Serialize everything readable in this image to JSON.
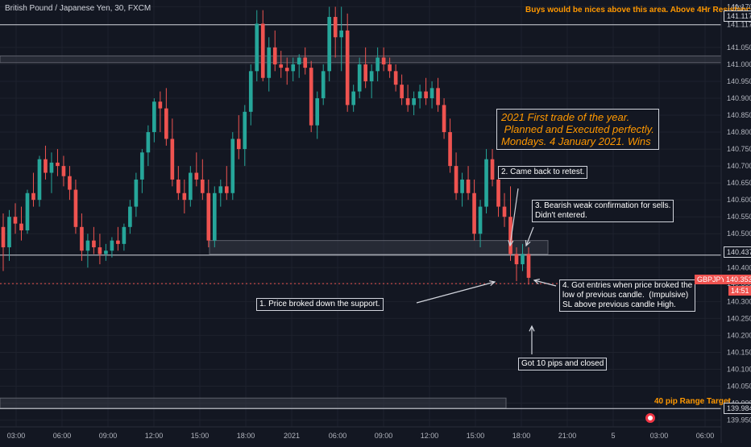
{
  "header": {
    "symbol": "British Pound / Japanese Yen, 30, FXCM",
    "currency": "JPY",
    "top_note": "Buys would be nices above this area. Above 4Hr Resistance."
  },
  "annotations": {
    "big_title": "2021 First trade of the year.\n Planned and Executed perfectly.\nMondays. 4 January 2021. Wins",
    "n1": "1. Price broked down the support.",
    "n2": "2. Came back to retest.",
    "n3": "3. Bearish weak confirmation for sells.\nDidn't entered.",
    "n4": "4. Got entries when price broked the\nlow of previous candle.  (Impulsive)\nSL above previous candle High.",
    "n5": "Got 10 pips and closed",
    "target": "40 pip Range Target"
  },
  "price_tags": {
    "top_line": "141.117",
    "support_line": "140.437",
    "current_label": "GBPJPY",
    "current": "140.353",
    "timer": "14:51",
    "target_line": "139.984"
  },
  "colors": {
    "background": "#131722",
    "bull": "#26a69a",
    "bear": "#ef5350",
    "text": "#d1d4dc",
    "grid": "#1e222d",
    "annotation": "#ff9800"
  },
  "chart_data": {
    "type": "candlestick",
    "y_ticks": [
      "141.170",
      "141.117",
      "141.050",
      "141.000",
      "140.950",
      "140.900",
      "140.850",
      "140.800",
      "140.750",
      "140.700",
      "140.650",
      "140.600",
      "140.550",
      "140.500",
      "140.437",
      "140.400",
      "140.353",
      "140.300",
      "140.250",
      "140.200",
      "140.150",
      "140.100",
      "140.050",
      "140.000",
      "139.984",
      "139.950"
    ],
    "x_ticks": [
      "03:00",
      "06:00",
      "09:00",
      "12:00",
      "15:00",
      "18:00",
      "2021",
      "06:00",
      "09:00",
      "12:00",
      "15:00",
      "18:00",
      "21:00",
      "5",
      "03:00",
      "06:00"
    ],
    "ylim": [
      139.93,
      141.19
    ],
    "levels": {
      "resistance": 141.117,
      "support": 140.437,
      "target": 139.984,
      "current": 140.353
    },
    "zones": [
      {
        "from": 141.005,
        "to": 141.025
      },
      {
        "from": 140.44,
        "to": 140.48
      },
      {
        "from": 139.985,
        "to": 140.015
      }
    ],
    "ohlc": [
      [
        140.52,
        140.56,
        140.39,
        140.46
      ],
      [
        140.46,
        140.57,
        140.42,
        140.55
      ],
      [
        140.55,
        140.59,
        140.5,
        140.53
      ],
      [
        140.53,
        140.58,
        140.48,
        140.51
      ],
      [
        140.51,
        140.63,
        140.5,
        140.62
      ],
      [
        140.62,
        140.68,
        140.58,
        140.6
      ],
      [
        140.6,
        140.73,
        140.58,
        140.72
      ],
      [
        140.72,
        140.76,
        140.66,
        140.68
      ],
      [
        140.68,
        140.74,
        140.62,
        140.71
      ],
      [
        140.71,
        140.75,
        140.67,
        140.7
      ],
      [
        140.7,
        140.73,
        140.64,
        140.67
      ],
      [
        140.67,
        140.7,
        140.6,
        140.63
      ],
      [
        140.63,
        140.66,
        140.5,
        140.52
      ],
      [
        140.52,
        140.56,
        140.42,
        140.45
      ],
      [
        140.45,
        140.5,
        140.4,
        140.48
      ],
      [
        140.48,
        140.52,
        140.44,
        140.46
      ],
      [
        140.46,
        140.5,
        140.41,
        140.44
      ],
      [
        140.44,
        140.47,
        140.42,
        140.45
      ],
      [
        140.45,
        140.49,
        140.43,
        140.48
      ],
      [
        140.48,
        140.52,
        140.45,
        140.47
      ],
      [
        140.47,
        140.53,
        140.45,
        140.52
      ],
      [
        140.52,
        140.6,
        140.5,
        140.58
      ],
      [
        140.58,
        140.68,
        140.55,
        140.66
      ],
      [
        140.66,
        140.75,
        140.62,
        140.74
      ],
      [
        140.74,
        140.82,
        140.7,
        140.8
      ],
      [
        140.8,
        140.9,
        140.77,
        140.89
      ],
      [
        140.89,
        140.92,
        140.8,
        140.87
      ],
      [
        140.87,
        140.93,
        140.76,
        140.78
      ],
      [
        140.78,
        140.84,
        140.64,
        140.66
      ],
      [
        140.66,
        140.7,
        140.6,
        140.62
      ],
      [
        140.62,
        140.66,
        140.56,
        140.6
      ],
      [
        140.6,
        140.7,
        140.58,
        140.68
      ],
      [
        140.68,
        140.74,
        140.64,
        140.66
      ],
      [
        140.66,
        140.72,
        140.6,
        140.62
      ],
      [
        140.62,
        140.66,
        140.46,
        140.48
      ],
      [
        140.48,
        140.64,
        140.46,
        140.62
      ],
      [
        140.62,
        140.66,
        140.58,
        140.64
      ],
      [
        140.64,
        140.7,
        140.6,
        140.62
      ],
      [
        140.62,
        140.8,
        140.6,
        140.78
      ],
      [
        140.78,
        140.85,
        140.72,
        140.75
      ],
      [
        140.75,
        140.88,
        140.7,
        140.86
      ],
      [
        140.86,
        141.0,
        140.82,
        140.98
      ],
      [
        140.98,
        141.16,
        140.95,
        141.12
      ],
      [
        141.12,
        141.16,
        140.95,
        140.96
      ],
      [
        140.96,
        141.08,
        140.92,
        141.05
      ],
      [
        141.05,
        141.1,
        140.98,
        141.0
      ],
      [
        141.0,
        141.04,
        140.96,
        140.99
      ],
      [
        140.99,
        141.02,
        140.94,
        140.98
      ],
      [
        140.98,
        141.02,
        140.95,
        141.0
      ],
      [
        141.0,
        141.03,
        140.96,
        141.02
      ],
      [
        141.02,
        141.05,
        140.97,
        140.99
      ],
      [
        140.99,
        141.01,
        140.8,
        140.82
      ],
      [
        140.82,
        140.92,
        140.78,
        140.9
      ],
      [
        140.9,
        141.0,
        140.88,
        140.98
      ],
      [
        140.98,
        141.17,
        140.95,
        141.14
      ],
      [
        141.14,
        141.17,
        141.02,
        141.08
      ],
      [
        141.08,
        141.17,
        140.98,
        141.1
      ],
      [
        141.1,
        141.15,
        140.86,
        140.88
      ],
      [
        140.88,
        140.94,
        140.86,
        140.92
      ],
      [
        140.92,
        141.02,
        140.9,
        141.0
      ],
      [
        141.0,
        141.05,
        140.93,
        140.95
      ],
      [
        140.95,
        141.0,
        140.9,
        140.98
      ],
      [
        140.98,
        141.05,
        140.95,
        141.02
      ],
      [
        141.02,
        141.05,
        140.98,
        141.0
      ],
      [
        141.0,
        141.02,
        140.96,
        140.98
      ],
      [
        140.98,
        141.0,
        140.92,
        140.94
      ],
      [
        140.94,
        140.97,
        140.88,
        140.9
      ],
      [
        140.9,
        140.94,
        140.86,
        140.88
      ],
      [
        140.88,
        140.92,
        140.85,
        140.9
      ],
      [
        140.9,
        140.94,
        140.87,
        140.92
      ],
      [
        140.92,
        140.96,
        140.88,
        140.9
      ],
      [
        140.9,
        140.95,
        140.87,
        140.93
      ],
      [
        140.93,
        140.96,
        140.86,
        140.88
      ],
      [
        140.88,
        140.9,
        140.78,
        140.8
      ],
      [
        140.8,
        140.84,
        140.68,
        140.7
      ],
      [
        140.7,
        140.74,
        140.6,
        140.62
      ],
      [
        140.62,
        140.68,
        140.58,
        140.66
      ],
      [
        140.66,
        140.7,
        140.6,
        140.62
      ],
      [
        140.62,
        140.66,
        140.48,
        140.5
      ],
      [
        140.5,
        140.6,
        140.46,
        140.58
      ],
      [
        140.58,
        140.75,
        140.56,
        140.72
      ],
      [
        140.72,
        140.75,
        140.64,
        140.66
      ],
      [
        140.66,
        140.7,
        140.55,
        140.58
      ],
      [
        140.58,
        140.62,
        140.52,
        140.55
      ],
      [
        140.55,
        140.64,
        140.42,
        140.44
      ],
      [
        140.44,
        140.46,
        140.36,
        140.41
      ],
      [
        140.41,
        140.47,
        140.39,
        140.44
      ],
      [
        140.44,
        140.46,
        140.35,
        140.37
      ]
    ]
  }
}
